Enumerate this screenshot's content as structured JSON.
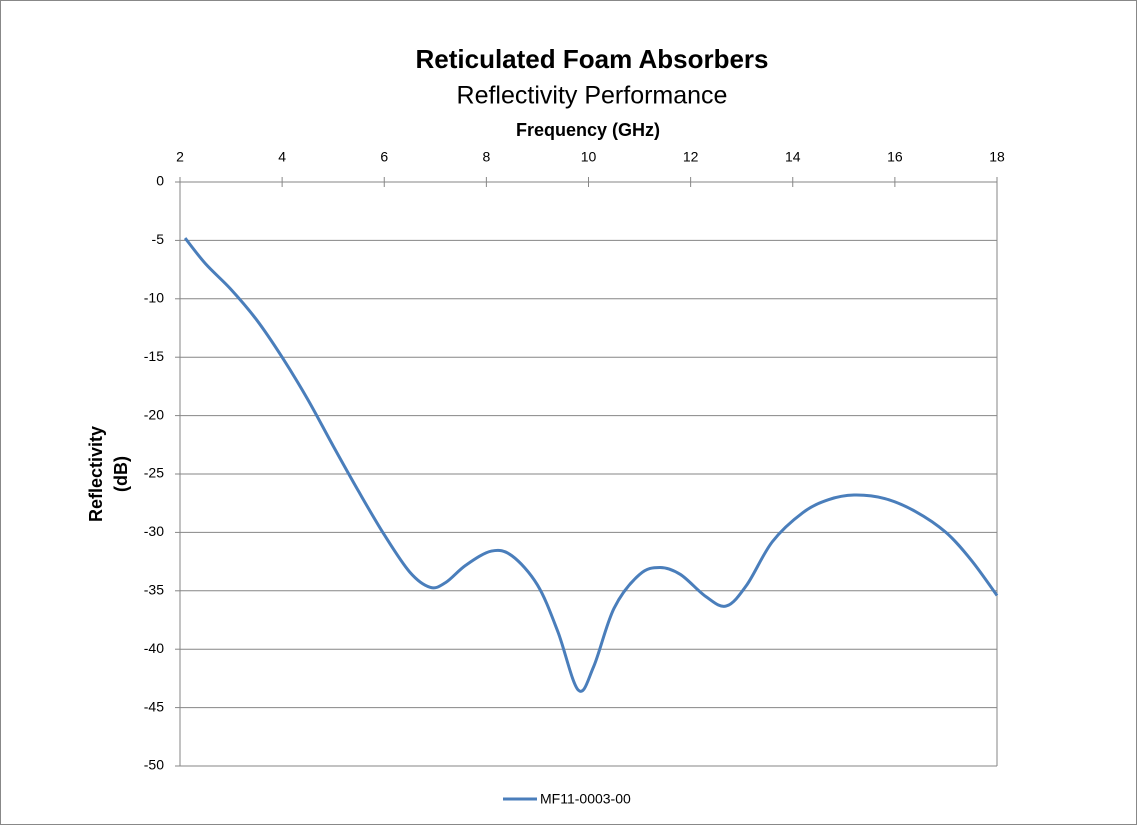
{
  "chart_data": {
    "type": "line",
    "title": "Reticulated Foam Absorbers",
    "subtitle": "Reflectivity Performance",
    "xlabel": "Frequency (GHz)",
    "ylabel": [
      "Reflectivity",
      "(dB)"
    ],
    "x": [
      2.1,
      2.5,
      3,
      3.5,
      4,
      4.5,
      5,
      5.5,
      6,
      6.5,
      6.9,
      7.2,
      7.6,
      8.1,
      8.5,
      9,
      9.4,
      9.8,
      10.1,
      10.5,
      11,
      11.4,
      11.8,
      12.3,
      12.7,
      13.1,
      13.6,
      14.2,
      14.7,
      15.2,
      15.8,
      16.4,
      17,
      17.5,
      18
    ],
    "series": [
      {
        "name": "MF11-0003-00",
        "color": "#4a7ebb",
        "values": [
          -4.8,
          -7,
          -9.2,
          -11.8,
          -15,
          -18.6,
          -22.6,
          -26.5,
          -30.2,
          -33.4,
          -34.7,
          -34.3,
          -32.8,
          -31.6,
          -32.0,
          -34.5,
          -38.5,
          -43.5,
          -41.5,
          -36.5,
          -33.6,
          -33.0,
          -33.6,
          -35.5,
          -36.3,
          -34.5,
          -30.8,
          -28.3,
          -27.2,
          -26.8,
          -27.1,
          -28.2,
          -30.0,
          -32.4,
          -35.4
        ]
      }
    ],
    "xlim": [
      2,
      18
    ],
    "xticks": [
      2,
      4,
      6,
      8,
      10,
      12,
      14,
      16,
      18
    ],
    "ylim": [
      -50,
      0
    ],
    "yticks": [
      0,
      -5,
      -10,
      -15,
      -20,
      -25,
      -30,
      -35,
      -40,
      -45,
      -50
    ],
    "grid": true,
    "legend": "bottom"
  }
}
